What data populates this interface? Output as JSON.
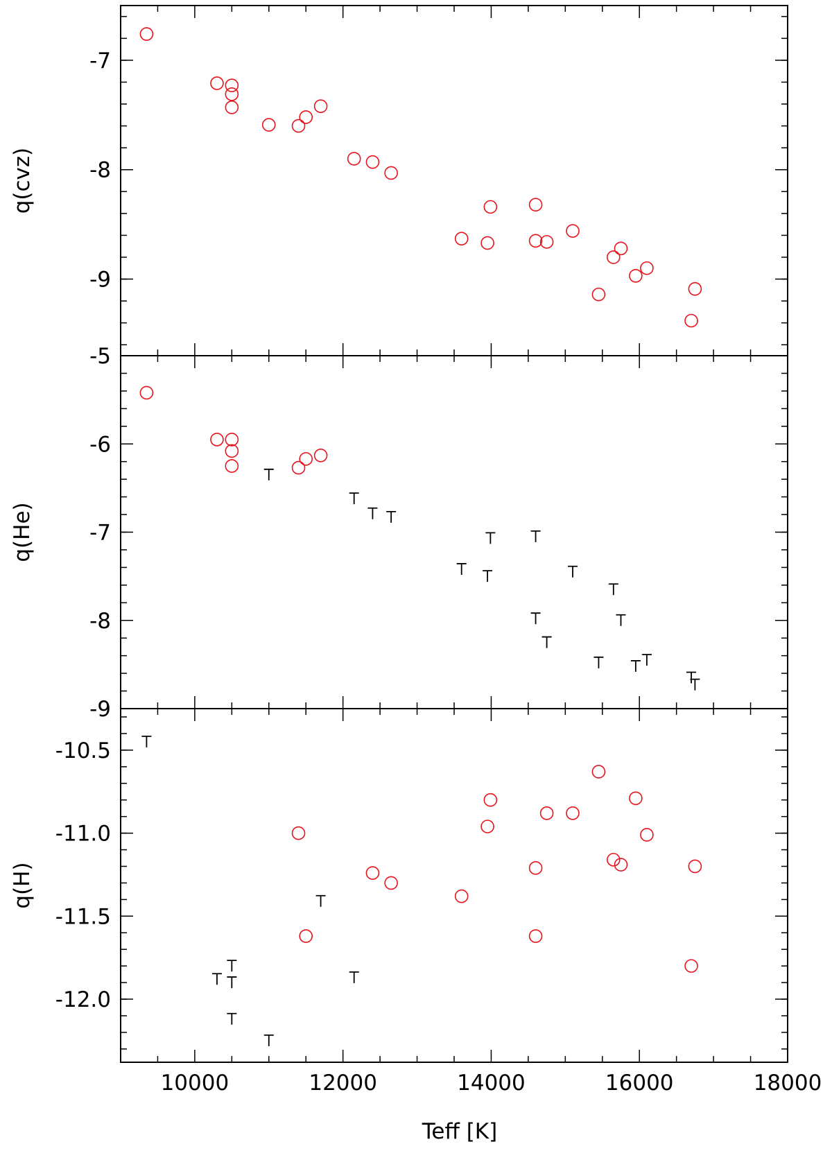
{
  "chart_data": {
    "type": "scatter",
    "colors": {
      "detection": "#e8141b",
      "upper_limit": "#000000",
      "axes": "#000000"
    },
    "xlabel": "Teff [K]",
    "xlim": [
      9000,
      18000
    ],
    "x_ticks": [
      10000,
      12000,
      14000,
      16000,
      18000
    ],
    "x_tick_labels": [
      "10000",
      "12000",
      "14000",
      "16000",
      "18000"
    ],
    "panels": [
      {
        "ylabel": "q(cvz)",
        "ylim": [
          -9.7,
          -6.5
        ],
        "y_ticks": [
          -7,
          -8,
          -9
        ],
        "y_tick_labels": [
          "-7",
          "-8",
          "-9"
        ],
        "y_minor_step": 0.2,
        "series": [
          {
            "marker": "circle",
            "x": [
              9350,
              10300,
              10500,
              10500,
              10500,
              11000,
              11400,
              11500,
              11700,
              12150,
              12400,
              12650,
              13600,
              13950,
              13990,
              14600,
              14600,
              14750,
              15100,
              15450,
              15650,
              15750,
              15950,
              16100,
              16700,
              16750
            ],
            "y": [
              -6.76,
              -7.21,
              -7.23,
              -7.31,
              -7.43,
              -7.59,
              -7.6,
              -7.52,
              -7.42,
              -7.9,
              -7.93,
              -8.03,
              -8.63,
              -8.67,
              -8.34,
              -8.32,
              -8.65,
              -8.66,
              -8.56,
              -9.14,
              -8.8,
              -8.72,
              -8.97,
              -8.9,
              -9.38,
              -9.09
            ]
          }
        ]
      },
      {
        "ylabel": "q(He)",
        "ylim": [
          -9,
          -5
        ],
        "y_ticks": [
          -6,
          -7,
          -8,
          -9
        ],
        "y_tick_labels": [
          "-6",
          "-7",
          "-8",
          "-9"
        ],
        "y_major_tick_labels_extra": [
          {
            "value": -5,
            "label": "-5"
          }
        ],
        "y_minor_step": 0.2,
        "series": [
          {
            "marker": "circle",
            "x": [
              9350,
              10300,
              10500,
              10500,
              10500,
              11400,
              11500,
              11700
            ],
            "y": [
              -5.42,
              -5.95,
              -5.95,
              -6.08,
              -6.25,
              -6.27,
              -6.17,
              -6.13
            ]
          },
          {
            "marker": "upper-limit",
            "x": [
              11000,
              12150,
              12400,
              12650,
              13600,
              13950,
              13990,
              14600,
              14600,
              14750,
              15100,
              15450,
              15650,
              15750,
              15950,
              16100,
              16700,
              16750
            ],
            "y": [
              -6.35,
              -6.62,
              -6.79,
              -6.83,
              -7.42,
              -7.5,
              -7.07,
              -7.05,
              -7.98,
              -8.25,
              -7.45,
              -8.48,
              -7.65,
              -8.0,
              -8.52,
              -8.45,
              -8.65,
              -8.73
            ]
          }
        ]
      },
      {
        "ylabel": "q(H)",
        "ylim": [
          -12.38,
          -10.25
        ],
        "y_ticks": [
          -10.5,
          -11.0,
          -11.5,
          -12.0
        ],
        "y_tick_labels": [
          "-10.5",
          "-11.0",
          "-11.5",
          "-12.0"
        ],
        "y_minor_step": 0.1,
        "series": [
          {
            "marker": "circle",
            "x": [
              11400,
              11500,
              12400,
              12650,
              13600,
              13950,
              13990,
              14600,
              14600,
              14750,
              15100,
              15450,
              15650,
              15750,
              15950,
              16100,
              16700,
              16750
            ],
            "y": [
              -11.0,
              -11.62,
              -11.24,
              -11.3,
              -11.38,
              -10.96,
              -10.8,
              -11.21,
              -11.62,
              -10.88,
              -10.88,
              -10.63,
              -11.16,
              -11.19,
              -10.79,
              -11.01,
              -11.8,
              -11.2
            ]
          },
          {
            "marker": "upper-limit",
            "x": [
              9350,
              10300,
              10500,
              10500,
              10500,
              11000,
              11700,
              12150
            ],
            "y": [
              -10.45,
              -11.88,
              -11.8,
              -11.9,
              -12.12,
              -12.25,
              -11.41,
              -11.87
            ]
          }
        ]
      }
    ]
  }
}
